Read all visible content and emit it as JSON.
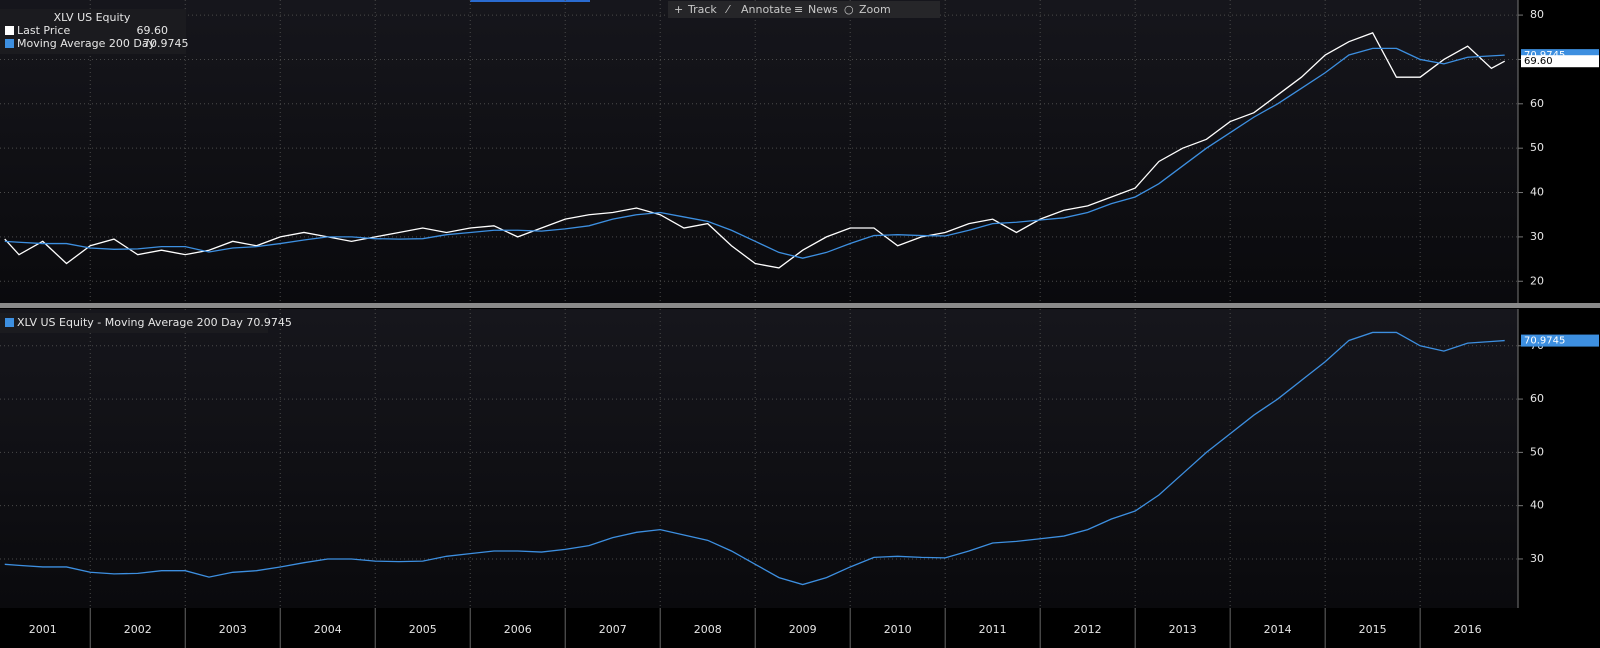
{
  "toolbar": [
    "Track",
    "Annotate",
    "News",
    "Zoom"
  ],
  "chart_data": [
    {
      "type": "line",
      "title": "XLV US Equity",
      "x": [
        2001.1,
        2001.25,
        2001.5,
        2001.75,
        2002,
        2002.25,
        2002.5,
        2002.75,
        2003,
        2003.25,
        2003.5,
        2003.75,
        2004,
        2004.25,
        2004.5,
        2004.75,
        2005,
        2005.25,
        2005.5,
        2005.75,
        2006,
        2006.25,
        2006.5,
        2006.75,
        2007,
        2007.25,
        2007.5,
        2007.75,
        2008,
        2008.25,
        2008.5,
        2008.75,
        2009,
        2009.25,
        2009.5,
        2009.75,
        2010,
        2010.25,
        2010.5,
        2010.75,
        2011,
        2011.25,
        2011.5,
        2011.75,
        2012,
        2012.25,
        2012.5,
        2012.75,
        2013,
        2013.25,
        2013.5,
        2013.75,
        2014,
        2014.25,
        2014.5,
        2014.75,
        2015,
        2015.25,
        2015.5,
        2015.75,
        2016,
        2016.25,
        2016.5,
        2016.75,
        2016.89
      ],
      "series": [
        {
          "name": "Last Price",
          "color": "#ffffff",
          "last_label": "69.60",
          "values": [
            29.5,
            26,
            29,
            24,
            28,
            29.5,
            26,
            27,
            26,
            27,
            29,
            28,
            30,
            31,
            30,
            29,
            30,
            31,
            32,
            31,
            32,
            32.5,
            30,
            32,
            34,
            35,
            35.5,
            36.5,
            35,
            32,
            33,
            28,
            24,
            23,
            27,
            30,
            32,
            32,
            28,
            30,
            31,
            33,
            34,
            31,
            34,
            36,
            37,
            39,
            41,
            47,
            50,
            52,
            56,
            58,
            62,
            66,
            71,
            74,
            76,
            66,
            66,
            70,
            73,
            68,
            69.6
          ]
        },
        {
          "name": "Moving Average 200 Day",
          "color": "#3d8fe0",
          "last_label": "70.9745",
          "values": [
            29,
            28.8,
            28.5,
            28.5,
            27.5,
            27.2,
            27.3,
            27.8,
            27.8,
            26.6,
            27.5,
            27.8,
            28.5,
            29.3,
            30,
            30,
            29.6,
            29.5,
            29.6,
            30.5,
            31,
            31.5,
            31.5,
            31.3,
            31.8,
            32.5,
            34,
            35,
            35.5,
            34.5,
            33.5,
            31.5,
            29,
            26.5,
            25.2,
            26.5,
            28.5,
            30.3,
            30.5,
            30.3,
            30.2,
            31.5,
            33,
            33.3,
            33.8,
            34.3,
            35.5,
            37.5,
            39,
            42,
            46,
            50,
            53.5,
            57,
            60,
            63.5,
            67,
            71,
            72.5,
            72.5,
            70,
            69,
            70.5,
            70.8,
            70.9745
          ]
        }
      ],
      "xlim": [
        2001.05,
        2017.03
      ],
      "xticks": [
        2002,
        2003,
        2004,
        2005,
        2006,
        2007,
        2008,
        2009,
        2010,
        2011,
        2012,
        2013,
        2014,
        2015,
        2016
      ],
      "ylim": [
        15.1,
        83.4
      ],
      "yticks": [
        20,
        30,
        40,
        50,
        60,
        70,
        80
      ],
      "grid": true
    },
    {
      "type": "line",
      "x": [
        2001.1,
        2001.25,
        2001.5,
        2001.75,
        2002,
        2002.25,
        2002.5,
        2002.75,
        2003,
        2003.25,
        2003.5,
        2003.75,
        2004,
        2004.25,
        2004.5,
        2004.75,
        2005,
        2005.25,
        2005.5,
        2005.75,
        2006,
        2006.25,
        2006.5,
        2006.75,
        2007,
        2007.25,
        2007.5,
        2007.75,
        2008,
        2008.25,
        2008.5,
        2008.75,
        2009,
        2009.25,
        2009.5,
        2009.75,
        2010,
        2010.25,
        2010.5,
        2010.75,
        2011,
        2011.25,
        2011.5,
        2011.75,
        2012,
        2012.25,
        2012.5,
        2012.75,
        2013,
        2013.25,
        2013.5,
        2013.75,
        2014,
        2014.25,
        2014.5,
        2014.75,
        2015,
        2015.25,
        2015.5,
        2015.75,
        2016,
        2016.25,
        2016.5,
        2016.75,
        2016.89
      ],
      "series": [
        {
          "name": "XLV US Equity - Moving Average 200 Day",
          "color": "#3d8fe0",
          "last_label": "70.9745",
          "values": [
            29,
            28.8,
            28.5,
            28.5,
            27.5,
            27.2,
            27.3,
            27.8,
            27.8,
            26.6,
            27.5,
            27.8,
            28.5,
            29.3,
            30,
            30,
            29.6,
            29.5,
            29.6,
            30.5,
            31,
            31.5,
            31.5,
            31.3,
            31.8,
            32.5,
            34,
            35,
            35.5,
            34.5,
            33.5,
            31.5,
            29,
            26.5,
            25.2,
            26.5,
            28.5,
            30.3,
            30.5,
            30.3,
            30.2,
            31.5,
            33,
            33.3,
            33.8,
            34.3,
            35.5,
            37.5,
            39,
            42,
            46,
            50,
            53.5,
            57,
            60,
            63.5,
            67,
            71,
            72.5,
            72.5,
            70,
            69,
            70.5,
            70.8,
            70.9745
          ]
        }
      ],
      "xlim": [
        2001.05,
        2017.03
      ],
      "xticks": [
        2001,
        2002,
        2003,
        2004,
        2005,
        2006,
        2007,
        2008,
        2009,
        2010,
        2011,
        2012,
        2013,
        2014,
        2015,
        2016
      ],
      "ylim": [
        20.8,
        76.9
      ],
      "yticks": [
        30,
        40,
        50,
        60,
        70
      ],
      "grid": true
    }
  ]
}
